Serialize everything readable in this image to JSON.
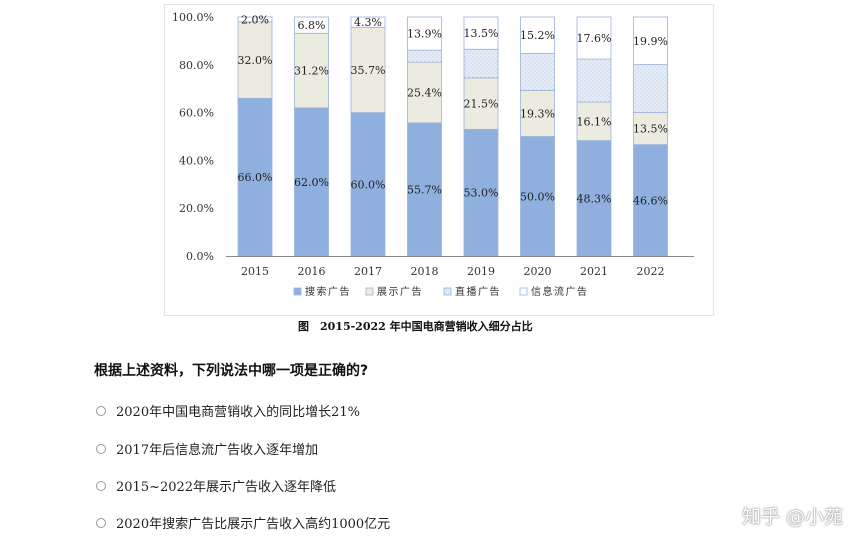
{
  "chart_data": {
    "type": "bar",
    "stacked": true,
    "categories": [
      "2015",
      "2016",
      "2017",
      "2018",
      "2019",
      "2020",
      "2021",
      "2022"
    ],
    "series": [
      {
        "name": "搜索广告",
        "values": [
          66.0,
          62.0,
          60.0,
          55.7,
          53.0,
          50.0,
          48.3,
          46.6
        ],
        "labels": [
          "66.0%",
          "62.0%",
          "60.0%",
          "55.7%",
          "53.0%",
          "50.0%",
          "48.3%",
          "46.6%"
        ],
        "color": "#8fb0de",
        "pattern": "solid"
      },
      {
        "name": "展示广告",
        "values": [
          32.0,
          31.2,
          35.7,
          25.4,
          21.5,
          19.3,
          16.1,
          13.5
        ],
        "labels": [
          "32.0%",
          "31.2%",
          "35.7%",
          "25.4%",
          "21.5%",
          "19.3%",
          "16.1%",
          "13.5%"
        ],
        "color": "#ecebe0",
        "pattern": "light"
      },
      {
        "name": "直播广告",
        "values": [
          0,
          0,
          0,
          5.0,
          12.0,
          15.5,
          18.0,
          20.0
        ],
        "labels": [],
        "color": "#dde8f6",
        "pattern": "dots"
      },
      {
        "name": "信息流广告",
        "values": [
          2.0,
          6.8,
          4.3,
          13.9,
          13.5,
          15.2,
          17.6,
          19.9
        ],
        "labels": [
          "2.0%",
          "6.8%",
          "4.3%",
          "13.9%",
          "13.5%",
          "15.2%",
          "17.6%",
          "19.9%"
        ],
        "color": "#ffffff",
        "pattern": "white"
      }
    ],
    "yticks": [
      "0.0%",
      "20.0%",
      "40.0%",
      "60.0%",
      "80.0%",
      "100.0%"
    ],
    "ylim": [
      0,
      100
    ],
    "title": "图　2015-2022 年中国电商营销收入细分占比",
    "xlabel": "",
    "ylabel": "",
    "legend_position": "bottom",
    "grid": false
  },
  "caption": "图　2015-2022 年中国电商营销收入细分占比",
  "question": "根据上述资料，下列说法中哪一项是正确的?",
  "options": [
    "2020年中国电商营销收入的同比增长21%",
    "2017年后信息流广告收入逐年增加",
    "2015~2022年展示广告收入逐年降低",
    "2020年搜索广告比展示广告收入高约1000亿元"
  ],
  "watermark": "知乎 @小苑"
}
